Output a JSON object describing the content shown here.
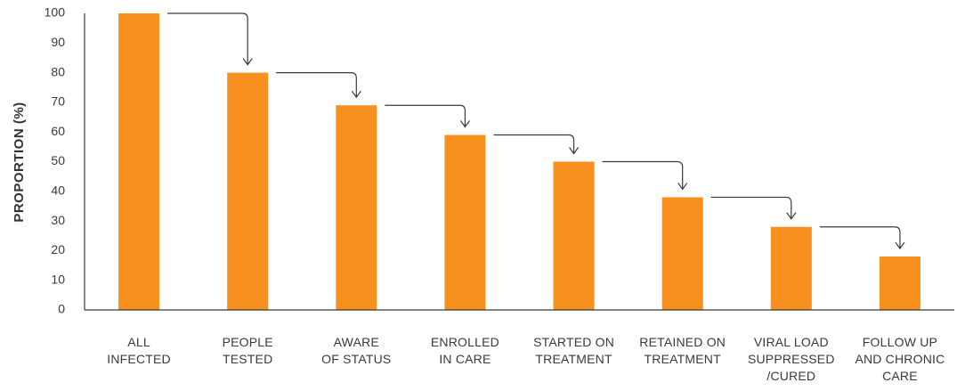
{
  "chart_data": {
    "type": "bar",
    "categories": [
      [
        "ALL",
        "INFECTED"
      ],
      [
        "PEOPLE",
        "TESTED"
      ],
      [
        "AWARE",
        "OF STATUS"
      ],
      [
        "ENROLLED",
        "IN CARE"
      ],
      [
        "STARTED ON",
        "TREATMENT"
      ],
      [
        "RETAINED ON",
        "TREATMENT"
      ],
      [
        "VIRAL LOAD",
        "SUPPRESSED",
        "/CURED"
      ],
      [
        "FOLLOW UP",
        "AND CHRONIC",
        "CARE"
      ]
    ],
    "values": [
      100,
      80,
      69,
      59,
      50,
      38,
      28,
      18
    ],
    "ylabel": "PROPORTION (%)",
    "xlabel": "",
    "title": "",
    "ylim": [
      0,
      100
    ],
    "yticks": [
      0,
      10,
      20,
      30,
      40,
      50,
      60,
      70,
      80,
      90,
      100
    ],
    "grid": false,
    "bar_color": "#F7901E",
    "arrows_between_bars": true
  }
}
